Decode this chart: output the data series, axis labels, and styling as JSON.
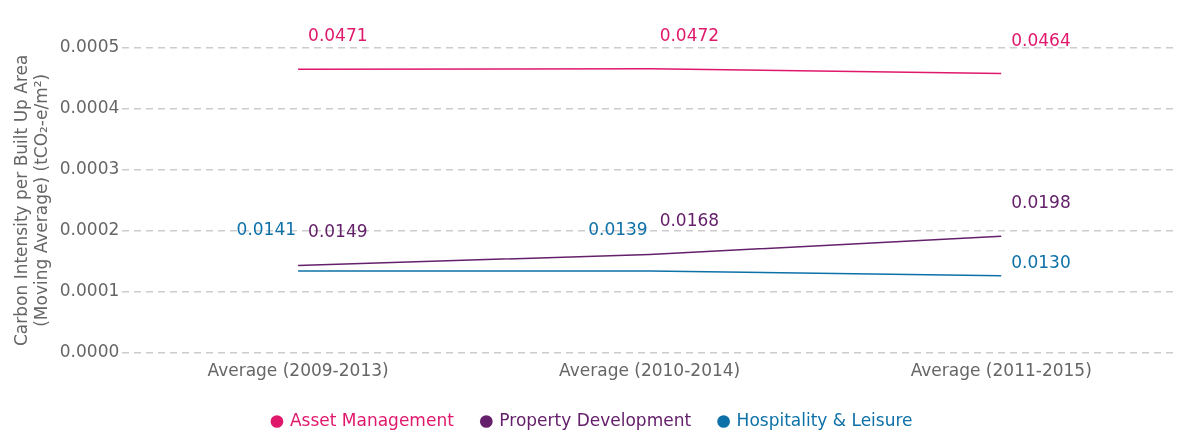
{
  "chart_data": {
    "type": "line",
    "ylabel": "Carbon Intensity per Built Up Area (Moving Average) (tCO₂-e/m²)",
    "categories": [
      "Average (2009-2013)",
      "Average (2010-2014)",
      "Average (2011-2015)"
    ],
    "series": [
      {
        "name": "Asset Management",
        "color": "#e0186c",
        "values": [
          0.000465,
          0.000466,
          0.000458
        ]
      },
      {
        "name": "Property Development",
        "color": "#64206a",
        "values": [
          0.000143,
          0.000161,
          0.000191
        ]
      },
      {
        "name": "Hospitality & Leisure",
        "color": "#0d71a8",
        "values": [
          0.000134,
          0.000134,
          0.000126
        ]
      }
    ],
    "annotations": [
      {
        "text": "0.0471",
        "x": "Average (2009-2013)",
        "y": 0.000465
      },
      {
        "text": "0.0472",
        "x": "Average (2010-2014)",
        "y": 0.000466
      },
      {
        "text": "0.0464",
        "x": "Average (2011-2015)",
        "y": 0.000458
      },
      {
        "text": "0.0149",
        "x": "Average (2009-2013)",
        "y": 0.000143
      },
      {
        "text": "0.0168",
        "x": "Average (2010-2014)",
        "y": 0.000161
      },
      {
        "text": "0.0198",
        "x": "Average (2011-2015)",
        "y": 0.000191
      },
      {
        "text": "0.0141",
        "x": "Average (2009-2013)",
        "y": 0.000134
      },
      {
        "text": "0.0139",
        "x": "Average (2010-2014)",
        "y": 0.000134
      },
      {
        "text": "0.0130",
        "x": "Average (2011-2015)",
        "y": 0.000126
      }
    ],
    "ylim": [
      0,
      0.0005
    ],
    "yticks": [
      {
        "value": 0,
        "label": "0.0000"
      },
      {
        "value": 0.0001,
        "label": "0.0001"
      },
      {
        "value": 0.0002,
        "label": "0.0002"
      },
      {
        "value": 0.0003,
        "label": "0.0003"
      },
      {
        "value": 0.0004,
        "label": "0.0004"
      },
      {
        "value": 0.0005,
        "label": "0.0005"
      }
    ],
    "grid": "y",
    "legend": "bottom",
    "marker": "none",
    "line_style": "solid"
  }
}
